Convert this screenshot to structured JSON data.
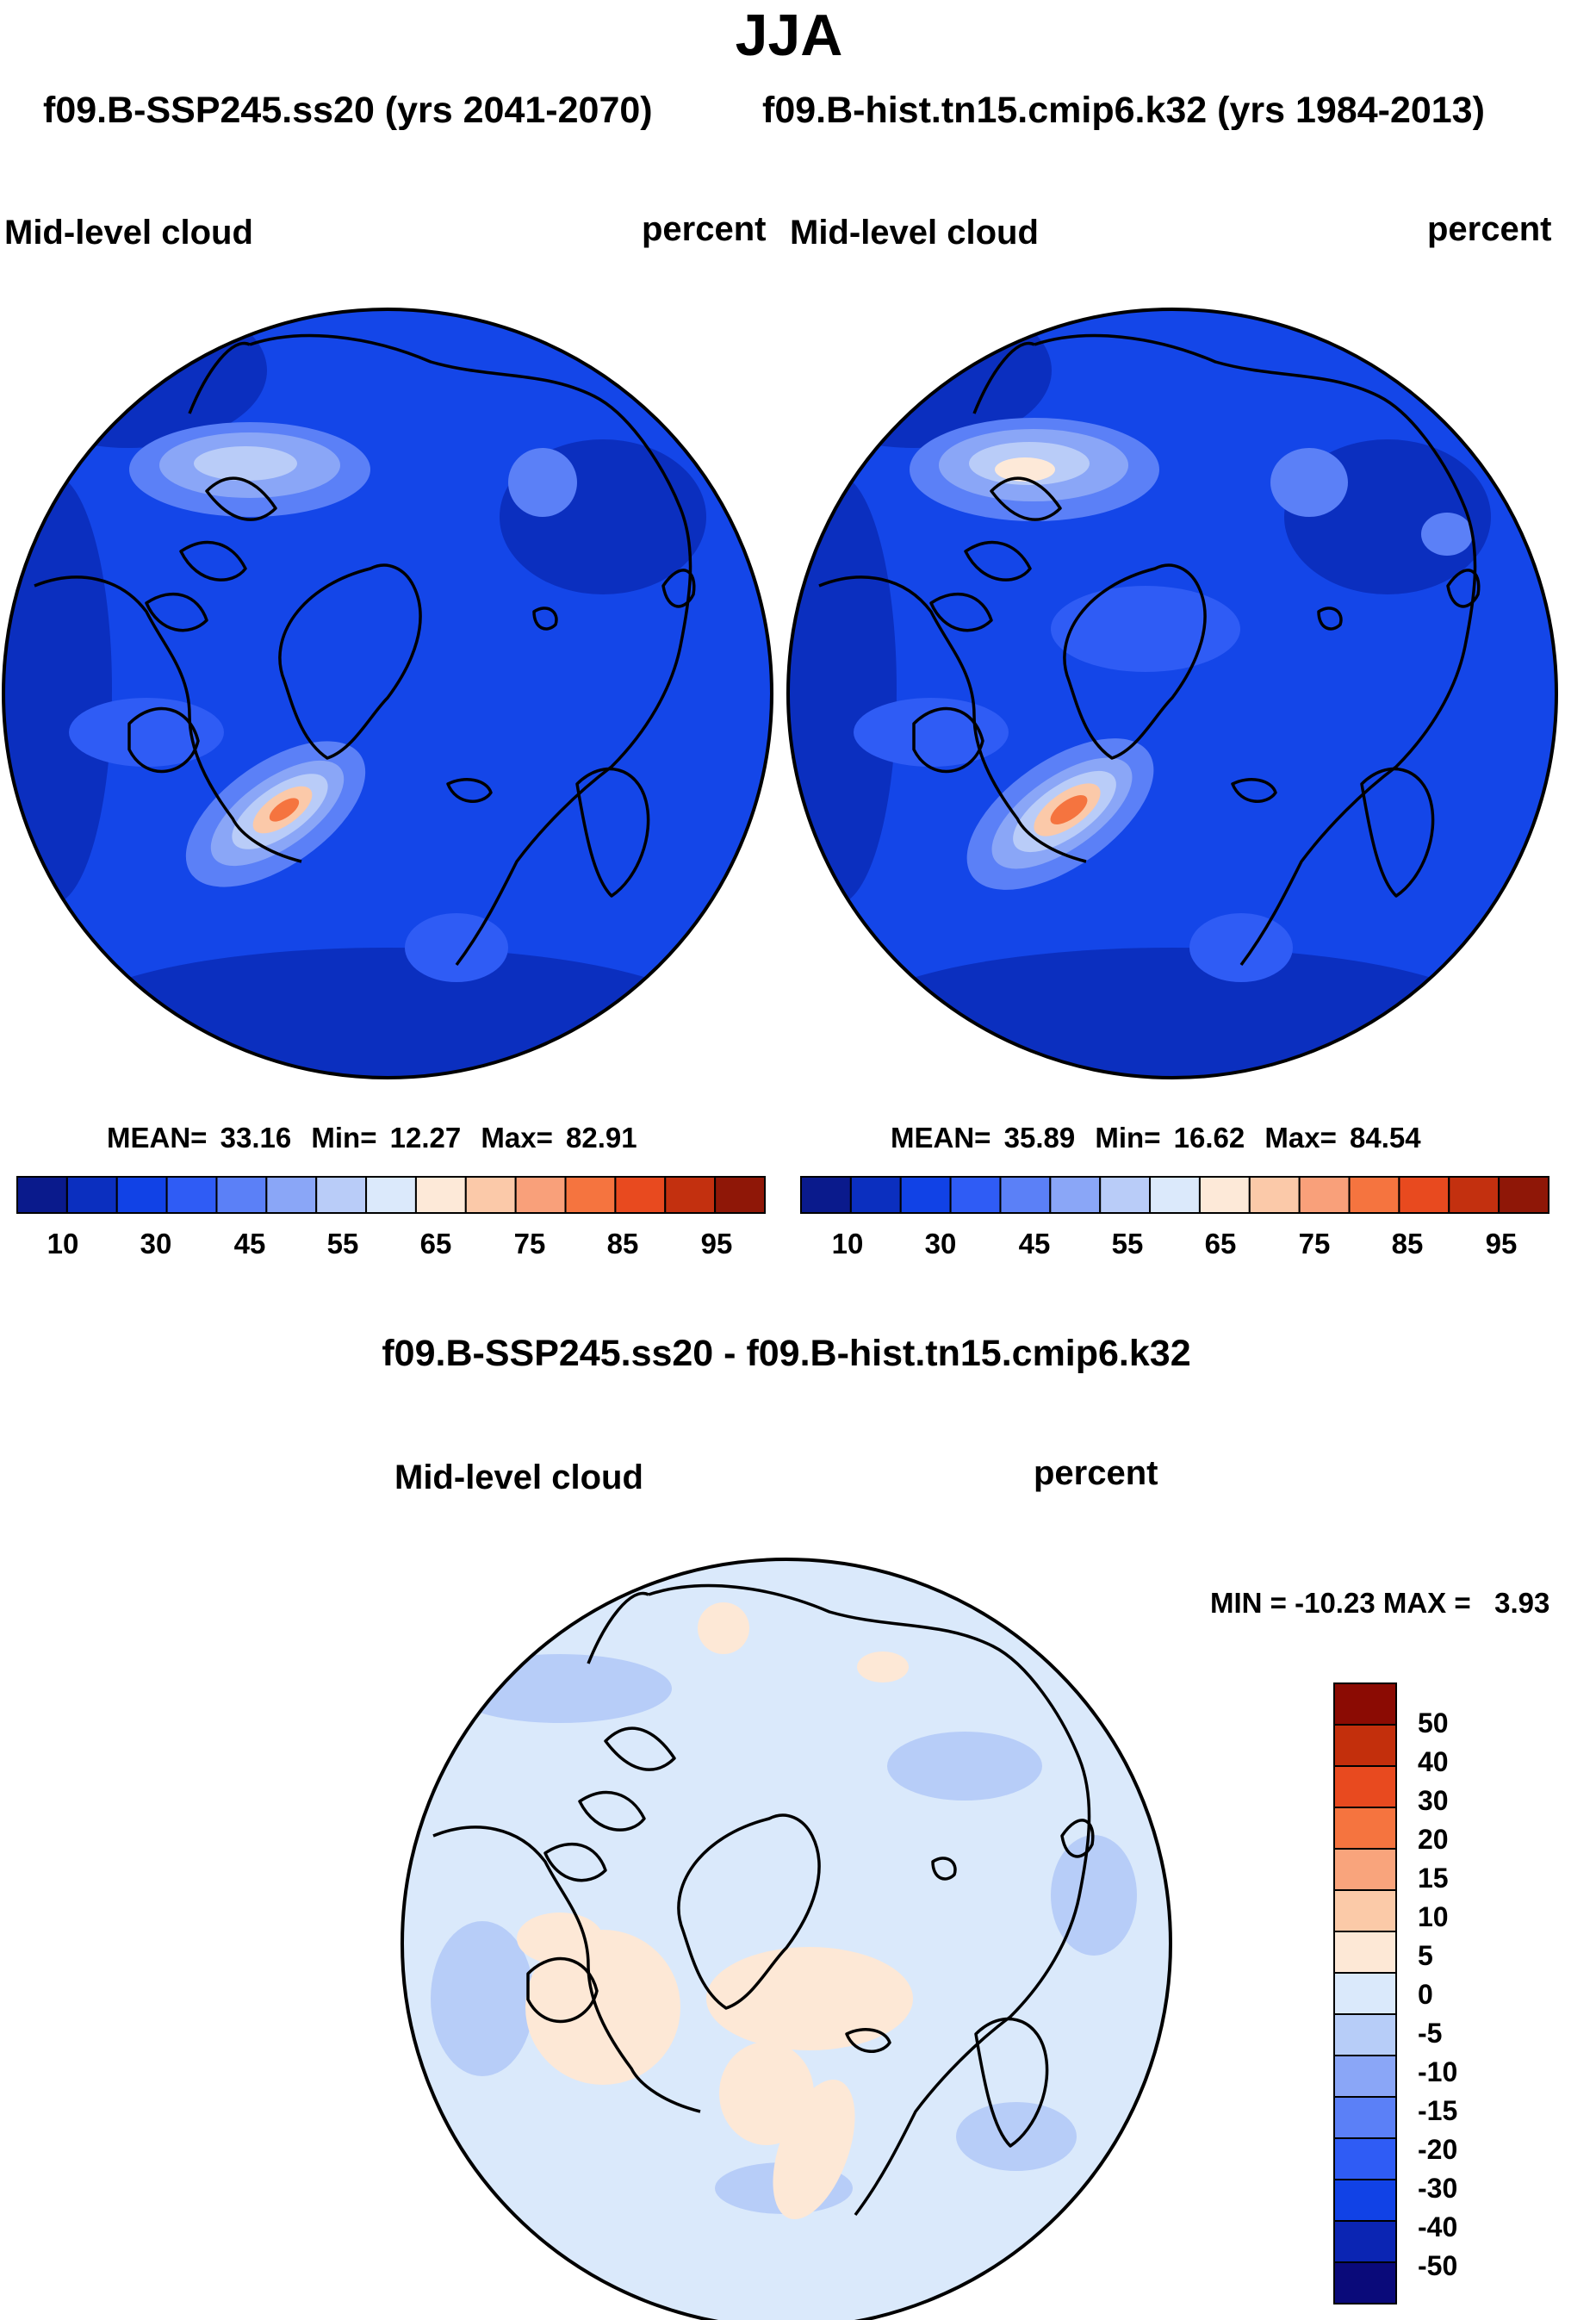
{
  "season": "JJA",
  "header": {
    "case_label": "f09.B-SSP245.ss20 (yrs 2041-2070)",
    "control_label": "f09.B-hist.tn15.cmip6.k32 (yrs 1984-2013)"
  },
  "panels": [
    {
      "variable": "Mid-level cloud",
      "units": "percent",
      "stats": {
        "mean_label": "MEAN=",
        "mean": "33.16",
        "min_label": "Min=",
        "min": "12.27",
        "max_label": "Max=",
        "max": "82.91"
      },
      "colorbar_labels": [
        "10",
        "30",
        "45",
        "55",
        "65",
        "75",
        "85",
        "95"
      ]
    },
    {
      "variable": "Mid-level cloud",
      "units": "percent",
      "stats": {
        "mean_label": "MEAN=",
        "mean": "35.89",
        "min_label": "Min=",
        "min": "16.62",
        "max_label": "Max=",
        "max": "84.54"
      },
      "colorbar_labels": [
        "10",
        "30",
        "45",
        "55",
        "65",
        "75",
        "85",
        "95"
      ]
    }
  ],
  "diff": {
    "title": "f09.B-SSP245.ss20 - f09.B-hist.tn15.cmip6.k32",
    "variable": "Mid-level cloud",
    "units": "percent",
    "minmax_text": "MIN = -10.23 MAX =   3.93",
    "colorbar_labels": [
      "50",
      "40",
      "30",
      "20",
      "15",
      "10",
      "5",
      "0",
      "-5",
      "-10",
      "-15",
      "-20",
      "-30",
      "-40",
      "-50"
    ]
  },
  "colors": {
    "abs_scale": [
      "#0a1a8c",
      "#0b2fbf",
      "#1142e6",
      "#2f5cf5",
      "#5b80f7",
      "#8aa6f7",
      "#b9ccf8",
      "#dbe9fb",
      "#fde9d8",
      "#fbc9a9",
      "#f9a07a",
      "#f5743f",
      "#e84a1f",
      "#c3300f",
      "#8f1707"
    ],
    "diff_scale": [
      "#0a0a7a",
      "#0b25b3",
      "#1142e6",
      "#2f5cf5",
      "#5b80f7",
      "#8aa6f7",
      "#b7cdf8",
      "#dae9fb",
      "#fde8d6",
      "#fbcaa8",
      "#f9a47c",
      "#f5743f",
      "#e84a1f",
      "#c32f0c",
      "#8b0b03"
    ],
    "map_background_abs": "#1446e8",
    "map_background_diff": "#dae9fb"
  }
}
